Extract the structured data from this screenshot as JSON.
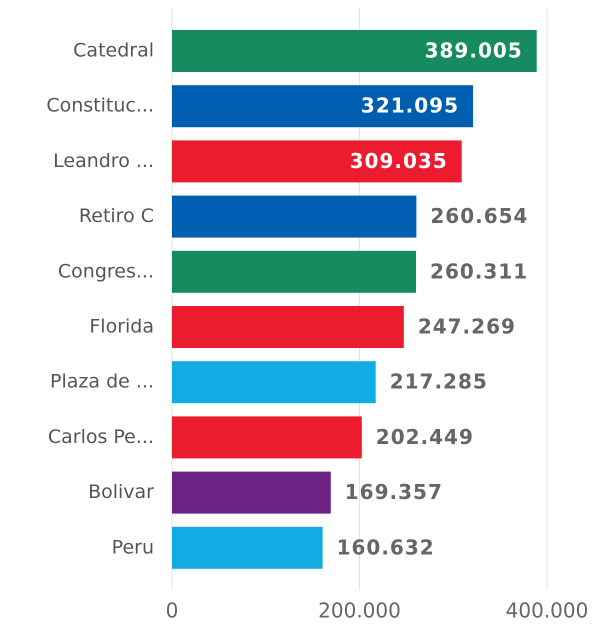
{
  "chart_data": {
    "type": "bar",
    "orientation": "horizontal",
    "categories": [
      "Catedral",
      "Constituc...",
      "Leandro ...",
      "Retiro C",
      "Congres...",
      "Florida",
      "Plaza de ...",
      "Carlos Pe...",
      "Bolivar",
      "Peru"
    ],
    "values": [
      389005,
      321095,
      309035,
      260654,
      260311,
      247269,
      217285,
      202449,
      169357,
      160632
    ],
    "value_labels": [
      "389.005",
      "321.095",
      "309.035",
      "260.654",
      "260.311",
      "247.269",
      "217.285",
      "202.449",
      "169.357",
      "160.632"
    ],
    "colors": [
      "#168b5f",
      "#005eb0",
      "#ed1b2e",
      "#005eb0",
      "#168b5f",
      "#ed1b2e",
      "#12ace4",
      "#ed1b2e",
      "#6b2282",
      "#12ace4"
    ],
    "xlim": [
      0,
      400000
    ],
    "xticks": [
      0,
      {
        "value": 200000,
        "label": "200.000"
      },
      {
        "value": 400000,
        "label": "400.000"
      }
    ],
    "grid": true
  }
}
